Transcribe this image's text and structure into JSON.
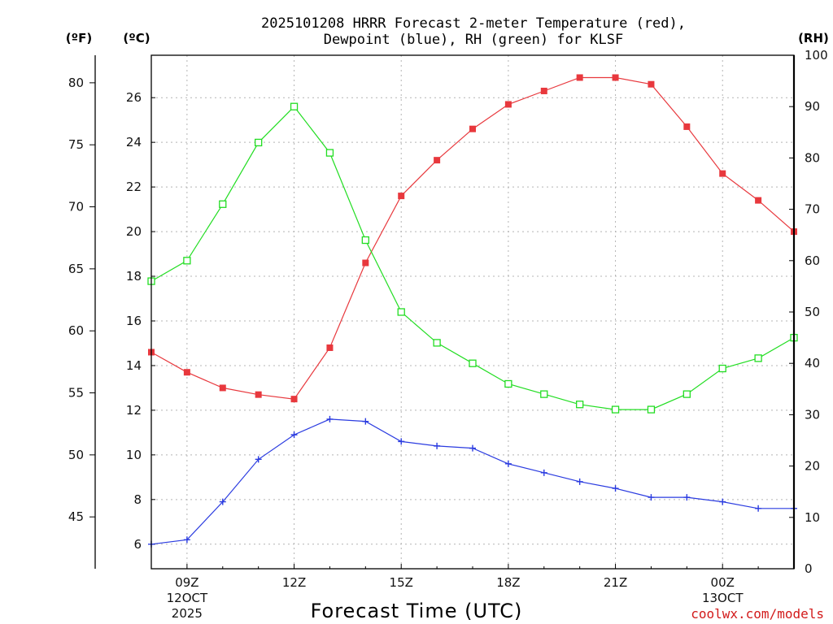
{
  "title": {
    "line1": "2025101208 HRRR Forecast 2-meter Temperature (red),",
    "line2": "Dewpoint (blue), RH (green) for KLSF"
  },
  "axes": {
    "f_unit": "(ºF)",
    "c_unit": "(ºC)",
    "rh_unit": "(RH)",
    "xlabel": "Forecast Time (UTC)"
  },
  "credit": "coolwx.com/models",
  "chart_data": {
    "type": "line",
    "x": [
      8,
      9,
      10,
      11,
      12,
      13,
      14,
      15,
      16,
      17,
      18,
      19,
      20,
      21,
      22,
      23,
      24,
      25,
      26
    ],
    "x_unit": "hour UTC from 12 Oct 2025 00Z",
    "xlim": [
      8,
      26
    ],
    "x_ticks": [
      {
        "x": 9,
        "lines": [
          "09Z",
          "12OCT",
          "2025"
        ]
      },
      {
        "x": 12,
        "lines": [
          "12Z"
        ]
      },
      {
        "x": 15,
        "lines": [
          "15Z"
        ]
      },
      {
        "x": 18,
        "lines": [
          "18Z"
        ]
      },
      {
        "x": 21,
        "lines": [
          "21Z"
        ]
      },
      {
        "x": 24,
        "lines": [
          "00Z",
          "13OCT"
        ]
      }
    ],
    "celsius_axis": {
      "lim": [
        4.9,
        27.9
      ],
      "ticks": [
        6,
        8,
        10,
        12,
        14,
        16,
        18,
        20,
        22,
        24,
        26
      ]
    },
    "fahrenheit_axis": {
      "ticks": [
        45,
        50,
        55,
        60,
        65,
        70,
        75,
        80
      ]
    },
    "rh_axis": {
      "lim": [
        0,
        100
      ],
      "ticks": [
        0,
        10,
        20,
        30,
        40,
        50,
        60,
        70,
        80,
        90,
        100
      ]
    },
    "series": [
      {
        "name": "Temperature",
        "axis": "celsius",
        "color": "#e8383d",
        "marker": "filled-square",
        "values": [
          14.6,
          13.7,
          13.0,
          12.7,
          12.5,
          14.8,
          18.6,
          21.6,
          23.2,
          24.6,
          25.7,
          26.3,
          26.9,
          26.9,
          26.6,
          24.7,
          22.6,
          21.4,
          20.0
        ]
      },
      {
        "name": "Dewpoint",
        "axis": "celsius",
        "color": "#2a3be0",
        "marker": "plus",
        "values": [
          6.0,
          6.2,
          7.9,
          9.8,
          10.9,
          11.6,
          11.5,
          10.6,
          10.4,
          10.3,
          9.6,
          9.2,
          8.8,
          8.5,
          8.1,
          8.1,
          7.9,
          7.6,
          7.6
        ]
      },
      {
        "name": "RH",
        "axis": "rh",
        "color": "#22dd22",
        "marker": "open-square",
        "values": [
          56,
          60,
          71,
          83,
          90,
          81,
          64,
          50,
          44,
          40,
          36,
          34,
          32,
          31,
          31,
          34,
          39,
          41,
          45
        ]
      }
    ],
    "grid": true,
    "legend": "none"
  }
}
